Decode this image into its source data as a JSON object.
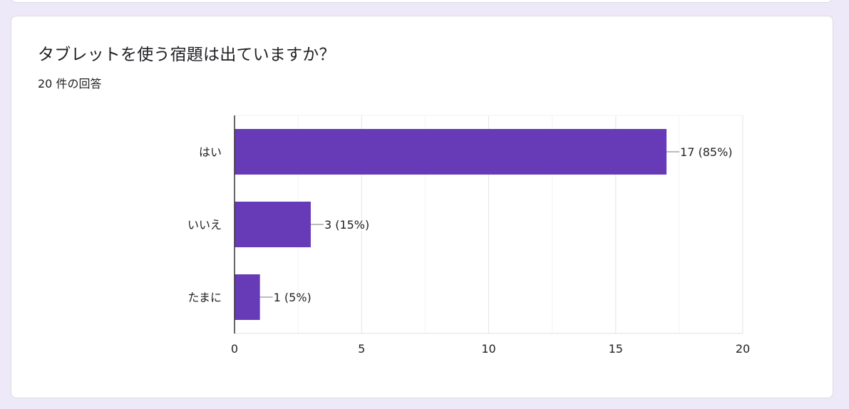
{
  "question": {
    "title": "タブレットを使う宿題は出ていますか？",
    "response_count": "20 件の回答"
  },
  "colors": {
    "bar": "#673ab7",
    "background": "#ede9f8",
    "card": "#ffffff",
    "grid": "#ebebeb"
  },
  "chart_data": {
    "type": "bar",
    "orientation": "horizontal",
    "categories": [
      "はい",
      "いいえ",
      "たまに"
    ],
    "values": [
      17,
      3,
      1
    ],
    "value_labels": [
      "17 (85%)",
      "3 (15%)",
      "1 (5%)"
    ],
    "xlim": [
      0,
      20
    ],
    "xticks": [
      0,
      5,
      10,
      15,
      20
    ],
    "grid": true,
    "legend": "none"
  }
}
